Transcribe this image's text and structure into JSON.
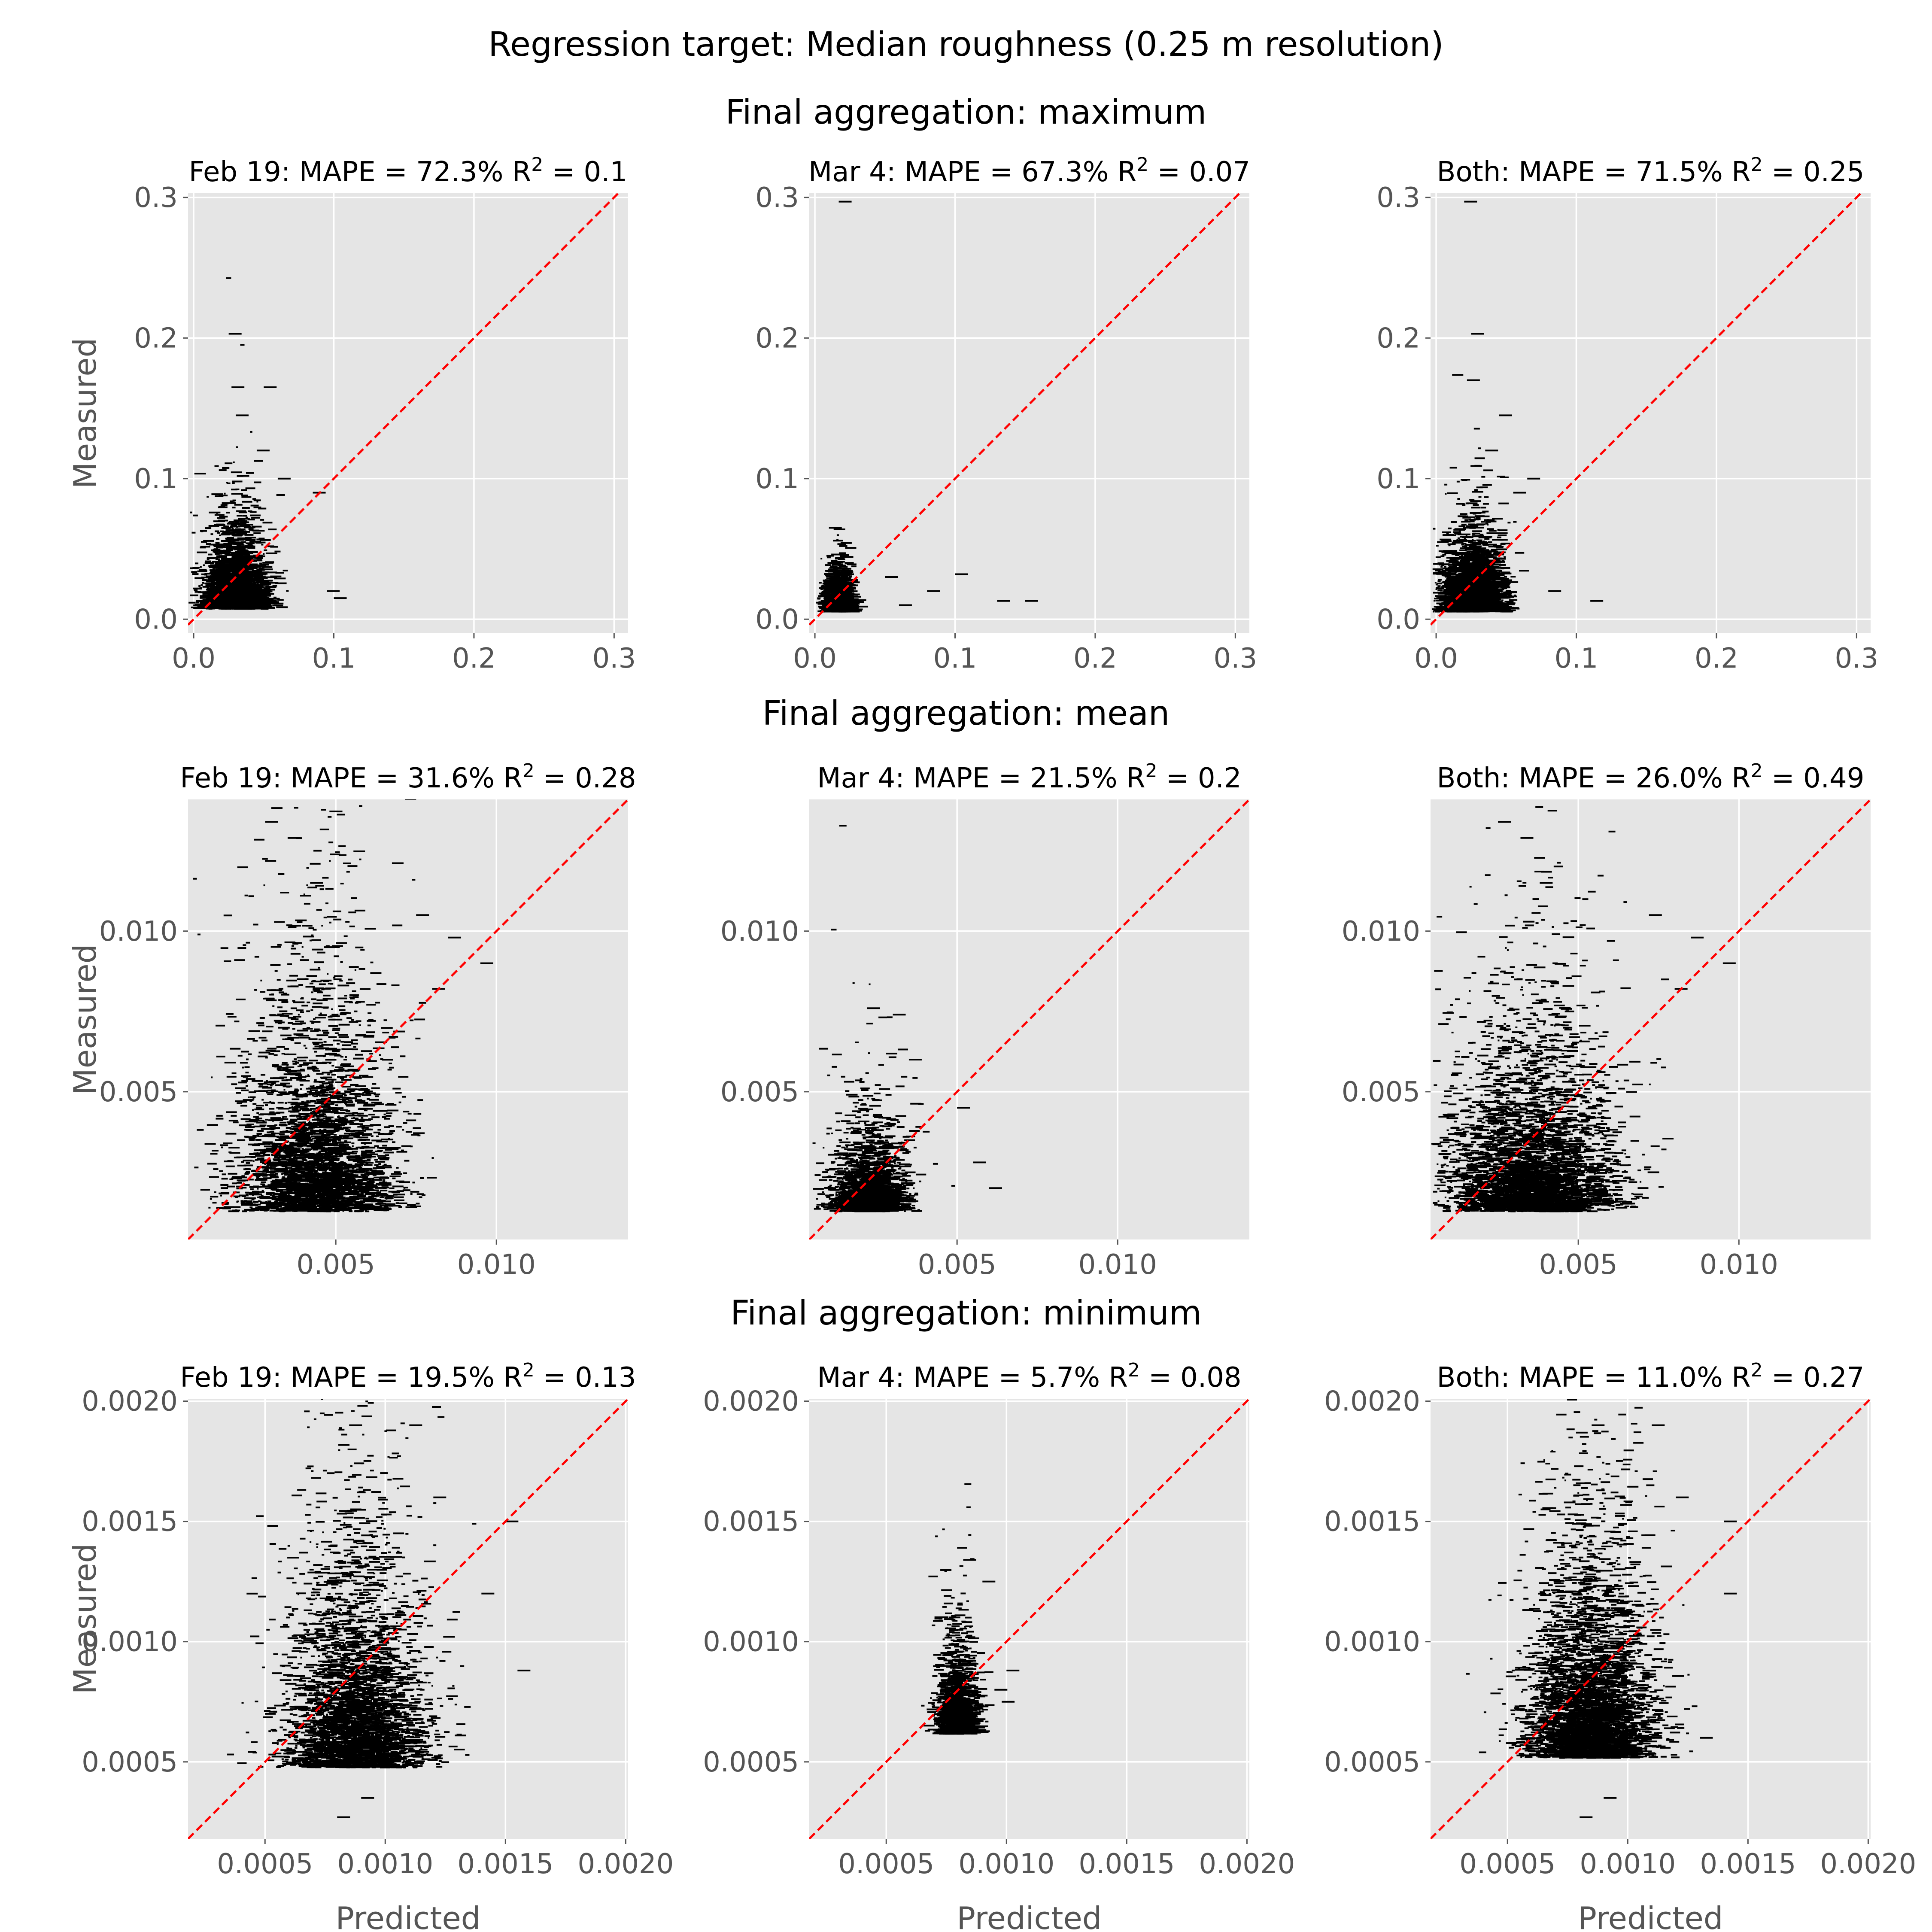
{
  "figure": {
    "title": "Regression target: Median roughness (0.25 m resolution)"
  },
  "chart_data": [
    {
      "type": "scatter",
      "row_title": "Final aggregation: maximum",
      "panels": [
        {
          "label": "Feb 19:",
          "mape": "72.3%",
          "r2": "0.1",
          "xlim": [
            -0.004,
            0.31
          ],
          "ylim": [
            -0.01,
            0.303
          ],
          "xticks": [
            0.0,
            0.1,
            0.2,
            0.3
          ],
          "xtick_labels": [
            "0.0",
            "0.1",
            "0.2",
            "0.3"
          ],
          "yticks": [
            0.0,
            0.1,
            0.2,
            0.3
          ],
          "ytick_labels": [
            "0.0",
            "0.1",
            "0.2",
            "0.3"
          ],
          "xlabel": "",
          "ylabel": "Measured",
          "cloud": {
            "x_mean": 0.028,
            "x_sd": 0.011,
            "y_base": 0.008,
            "y_scale": 0.018,
            "n": 2600
          },
          "outliers": [
            [
              0.025,
              0.203
            ],
            [
              0.027,
              0.165
            ],
            [
              0.05,
              0.165
            ],
            [
              0.03,
              0.145
            ],
            [
              0.045,
              0.12
            ],
            [
              0.06,
              0.1
            ],
            [
              0.085,
              0.09
            ],
            [
              0.095,
              0.02
            ],
            [
              0.1,
              0.015
            ]
          ]
        },
        {
          "label": "Mar 4:",
          "mape": "67.3%",
          "r2": "0.07",
          "xlim": [
            -0.004,
            0.31
          ],
          "ylim": [
            -0.01,
            0.303
          ],
          "xticks": [
            0.0,
            0.1,
            0.2,
            0.3
          ],
          "xtick_labels": [
            "0.0",
            "0.1",
            "0.2",
            "0.3"
          ],
          "yticks": [
            0.0,
            0.1,
            0.2,
            0.3
          ],
          "ytick_labels": [
            "0.0",
            "0.1",
            "0.2",
            "0.3"
          ],
          "xlabel": "",
          "ylabel": "",
          "cloud": {
            "x_mean": 0.014,
            "x_sd": 0.005,
            "y_base": 0.006,
            "y_scale": 0.008,
            "n": 1800
          },
          "outliers": [
            [
              0.017,
              0.297
            ],
            [
              0.01,
              0.065
            ],
            [
              0.05,
              0.03
            ],
            [
              0.1,
              0.032
            ],
            [
              0.15,
              0.013
            ],
            [
              0.13,
              0.013
            ],
            [
              0.08,
              0.02
            ],
            [
              0.06,
              0.01
            ]
          ]
        },
        {
          "label": "Both:",
          "mape": "71.5%",
          "r2": "0.25",
          "xlim": [
            -0.004,
            0.31
          ],
          "ylim": [
            -0.01,
            0.303
          ],
          "xticks": [
            0.0,
            0.1,
            0.2,
            0.3
          ],
          "xtick_labels": [
            "0.0",
            "0.1",
            "0.2",
            "0.3"
          ],
          "yticks": [
            0.0,
            0.1,
            0.2,
            0.3
          ],
          "ytick_labels": [
            "0.0",
            "0.1",
            "0.2",
            "0.3"
          ],
          "xlabel": "",
          "ylabel": "",
          "cloud": {
            "x_mean": 0.024,
            "x_sd": 0.011,
            "y_base": 0.006,
            "y_scale": 0.016,
            "n": 3200
          },
          "outliers": [
            [
              0.02,
              0.297
            ],
            [
              0.025,
              0.203
            ],
            [
              0.022,
              0.17
            ],
            [
              0.045,
              0.145
            ],
            [
              0.035,
              0.12
            ],
            [
              0.065,
              0.1
            ],
            [
              0.11,
              0.013
            ],
            [
              0.08,
              0.02
            ],
            [
              0.055,
              0.09
            ]
          ]
        }
      ]
    },
    {
      "type": "scatter",
      "row_title": "Final aggregation: mean",
      "panels": [
        {
          "label": "Feb 19:",
          "mape": "31.6%",
          "r2": "0.28",
          "xlim": [
            0.0004,
            0.0141
          ],
          "ylim": [
            0.0004,
            0.0141
          ],
          "xticks": [
            0.005,
            0.01
          ],
          "xtick_labels": [
            "0.005",
            "0.010"
          ],
          "yticks": [
            0.005,
            0.01
          ],
          "ytick_labels": [
            "0.005",
            "0.010"
          ],
          "xlabel": "",
          "ylabel": "Measured",
          "cloud": {
            "x_mean": 0.0043,
            "x_sd": 0.0012,
            "y_base": 0.0013,
            "y_scale": 0.0022,
            "n": 3400
          },
          "outliers": [
            [
              0.0028,
              0.0134
            ],
            [
              0.0035,
              0.0129
            ],
            [
              0.0042,
              0.0115
            ],
            [
              0.0075,
              0.0105
            ],
            [
              0.0085,
              0.0098
            ],
            [
              0.0095,
              0.009
            ],
            [
              0.008,
              0.0082
            ]
          ]
        },
        {
          "label": "Mar 4:",
          "mape": "21.5%",
          "r2": "0.2",
          "xlim": [
            0.0004,
            0.0141
          ],
          "ylim": [
            0.0004,
            0.0141
          ],
          "xticks": [
            0.005,
            0.01
          ],
          "xtick_labels": [
            "0.005",
            "0.010"
          ],
          "yticks": [
            0.005,
            0.01
          ],
          "ytick_labels": [
            "0.005",
            "0.010"
          ],
          "xlabel": "",
          "ylabel": "",
          "cloud": {
            "x_mean": 0.0022,
            "x_sd": 0.0006,
            "y_base": 0.0013,
            "y_scale": 0.0009,
            "n": 1800
          },
          "outliers": [
            [
              0.0022,
              0.0076
            ],
            [
              0.003,
              0.0074
            ],
            [
              0.0035,
              0.006
            ],
            [
              0.005,
              0.0045
            ],
            [
              0.006,
              0.002
            ],
            [
              0.0055,
              0.0028
            ]
          ]
        },
        {
          "label": "Both:",
          "mape": "26.0%",
          "r2": "0.49",
          "xlim": [
            0.0004,
            0.0141
          ],
          "ylim": [
            0.0004,
            0.0141
          ],
          "xticks": [
            0.005,
            0.01
          ],
          "xtick_labels": [
            "0.005",
            "0.010"
          ],
          "yticks": [
            0.005,
            0.01
          ],
          "ytick_labels": [
            "0.005",
            "0.010"
          ],
          "xlabel": "",
          "ylabel": "",
          "cloud": {
            "x_mean": 0.0035,
            "x_sd": 0.0013,
            "y_base": 0.0013,
            "y_scale": 0.0018,
            "n": 3600
          },
          "outliers": [
            [
              0.0025,
              0.0134
            ],
            [
              0.0032,
              0.0129
            ],
            [
              0.0038,
              0.0115
            ],
            [
              0.0072,
              0.0105
            ],
            [
              0.0085,
              0.0098
            ],
            [
              0.0095,
              0.009
            ],
            [
              0.008,
              0.0082
            ]
          ]
        }
      ]
    },
    {
      "type": "scatter",
      "row_title": "Final aggregation: minimum",
      "panels": [
        {
          "label": "Feb 19:",
          "mape": "19.5%",
          "r2": "0.13",
          "xlim": [
            0.00018,
            0.00201
          ],
          "ylim": [
            0.00018,
            0.00201
          ],
          "xticks": [
            0.0005,
            0.001,
            0.0015,
            0.002
          ],
          "xtick_labels": [
            "0.0005",
            "0.0010",
            "0.0015",
            "0.0020"
          ],
          "yticks": [
            0.0005,
            0.001,
            0.0015,
            0.002
          ],
          "ytick_labels": [
            "0.0005",
            "0.0010",
            "0.0015",
            "0.0020"
          ],
          "xlabel": "Predicted",
          "ylabel": "Measured",
          "cloud": {
            "x_mean": 0.00087,
            "x_sd": 0.00014,
            "y_base": 0.00048,
            "y_scale": 0.0003,
            "n": 3400
          },
          "outliers": [
            [
              0.00085,
              0.0019
            ],
            [
              0.0011,
              0.0019
            ],
            [
              0.0012,
              0.0016
            ],
            [
              0.0015,
              0.0015
            ],
            [
              0.0014,
              0.0012
            ],
            [
              0.00155,
              0.00088
            ],
            [
              0.0009,
              0.00035
            ],
            [
              0.0008,
              0.00027
            ]
          ]
        },
        {
          "label": "Mar 4:",
          "mape": "5.7%",
          "r2": "0.08",
          "xlim": [
            0.00018,
            0.00201
          ],
          "ylim": [
            0.00018,
            0.00201
          ],
          "xticks": [
            0.0005,
            0.001,
            0.0015,
            0.002
          ],
          "xtick_labels": [
            "0.0005",
            "0.0010",
            "0.0015",
            "0.0020"
          ],
          "yticks": [
            0.0005,
            0.001,
            0.0015,
            0.002
          ],
          "ytick_labels": [
            "0.0005",
            "0.0010",
            "0.0015",
            "0.0020"
          ],
          "xlabel": "Predicted",
          "ylabel": "",
          "cloud": {
            "x_mean": 0.00078,
            "x_sd": 4e-05,
            "y_base": 0.00062,
            "y_scale": 0.00012,
            "n": 1500
          },
          "outliers": [
            [
              0.00082,
              0.00134
            ],
            [
              0.0009,
              0.00125
            ],
            [
              0.001,
              0.00088
            ],
            [
              0.00095,
              0.0008
            ],
            [
              0.00098,
              0.00075
            ]
          ]
        },
        {
          "label": "Both:",
          "mape": "11.0%",
          "r2": "0.27",
          "xlim": [
            0.00018,
            0.00201
          ],
          "ylim": [
            0.00018,
            0.00201
          ],
          "xticks": [
            0.0005,
            0.001,
            0.0015,
            0.002
          ],
          "xtick_labels": [
            "0.0005",
            "0.0010",
            "0.0015",
            "0.0020"
          ],
          "yticks": [
            0.0005,
            0.001,
            0.0015,
            0.002
          ],
          "ytick_labels": [
            "0.0005",
            "0.0010",
            "0.0015",
            "0.0020"
          ],
          "xlabel": "Predicted",
          "ylabel": "",
          "cloud": {
            "x_mean": 0.00083,
            "x_sd": 0.00013,
            "y_base": 0.00052,
            "y_scale": 0.00028,
            "n": 3600
          },
          "outliers": [
            [
              0.00085,
              0.0019
            ],
            [
              0.0011,
              0.0019
            ],
            [
              0.0012,
              0.0016
            ],
            [
              0.0014,
              0.0015
            ],
            [
              0.0014,
              0.0012
            ],
            [
              0.0013,
              0.0006
            ],
            [
              0.0009,
              0.00035
            ],
            [
              0.0008,
              0.00027
            ]
          ]
        }
      ]
    }
  ],
  "styles": {
    "panel_background": "#e5e5e5",
    "grid_color": "#ffffff",
    "diagonal_color": "#ff0000",
    "point_color": "#000000",
    "tick_label_color": "#555555",
    "grid": true,
    "diagonal_style": "dashed"
  }
}
